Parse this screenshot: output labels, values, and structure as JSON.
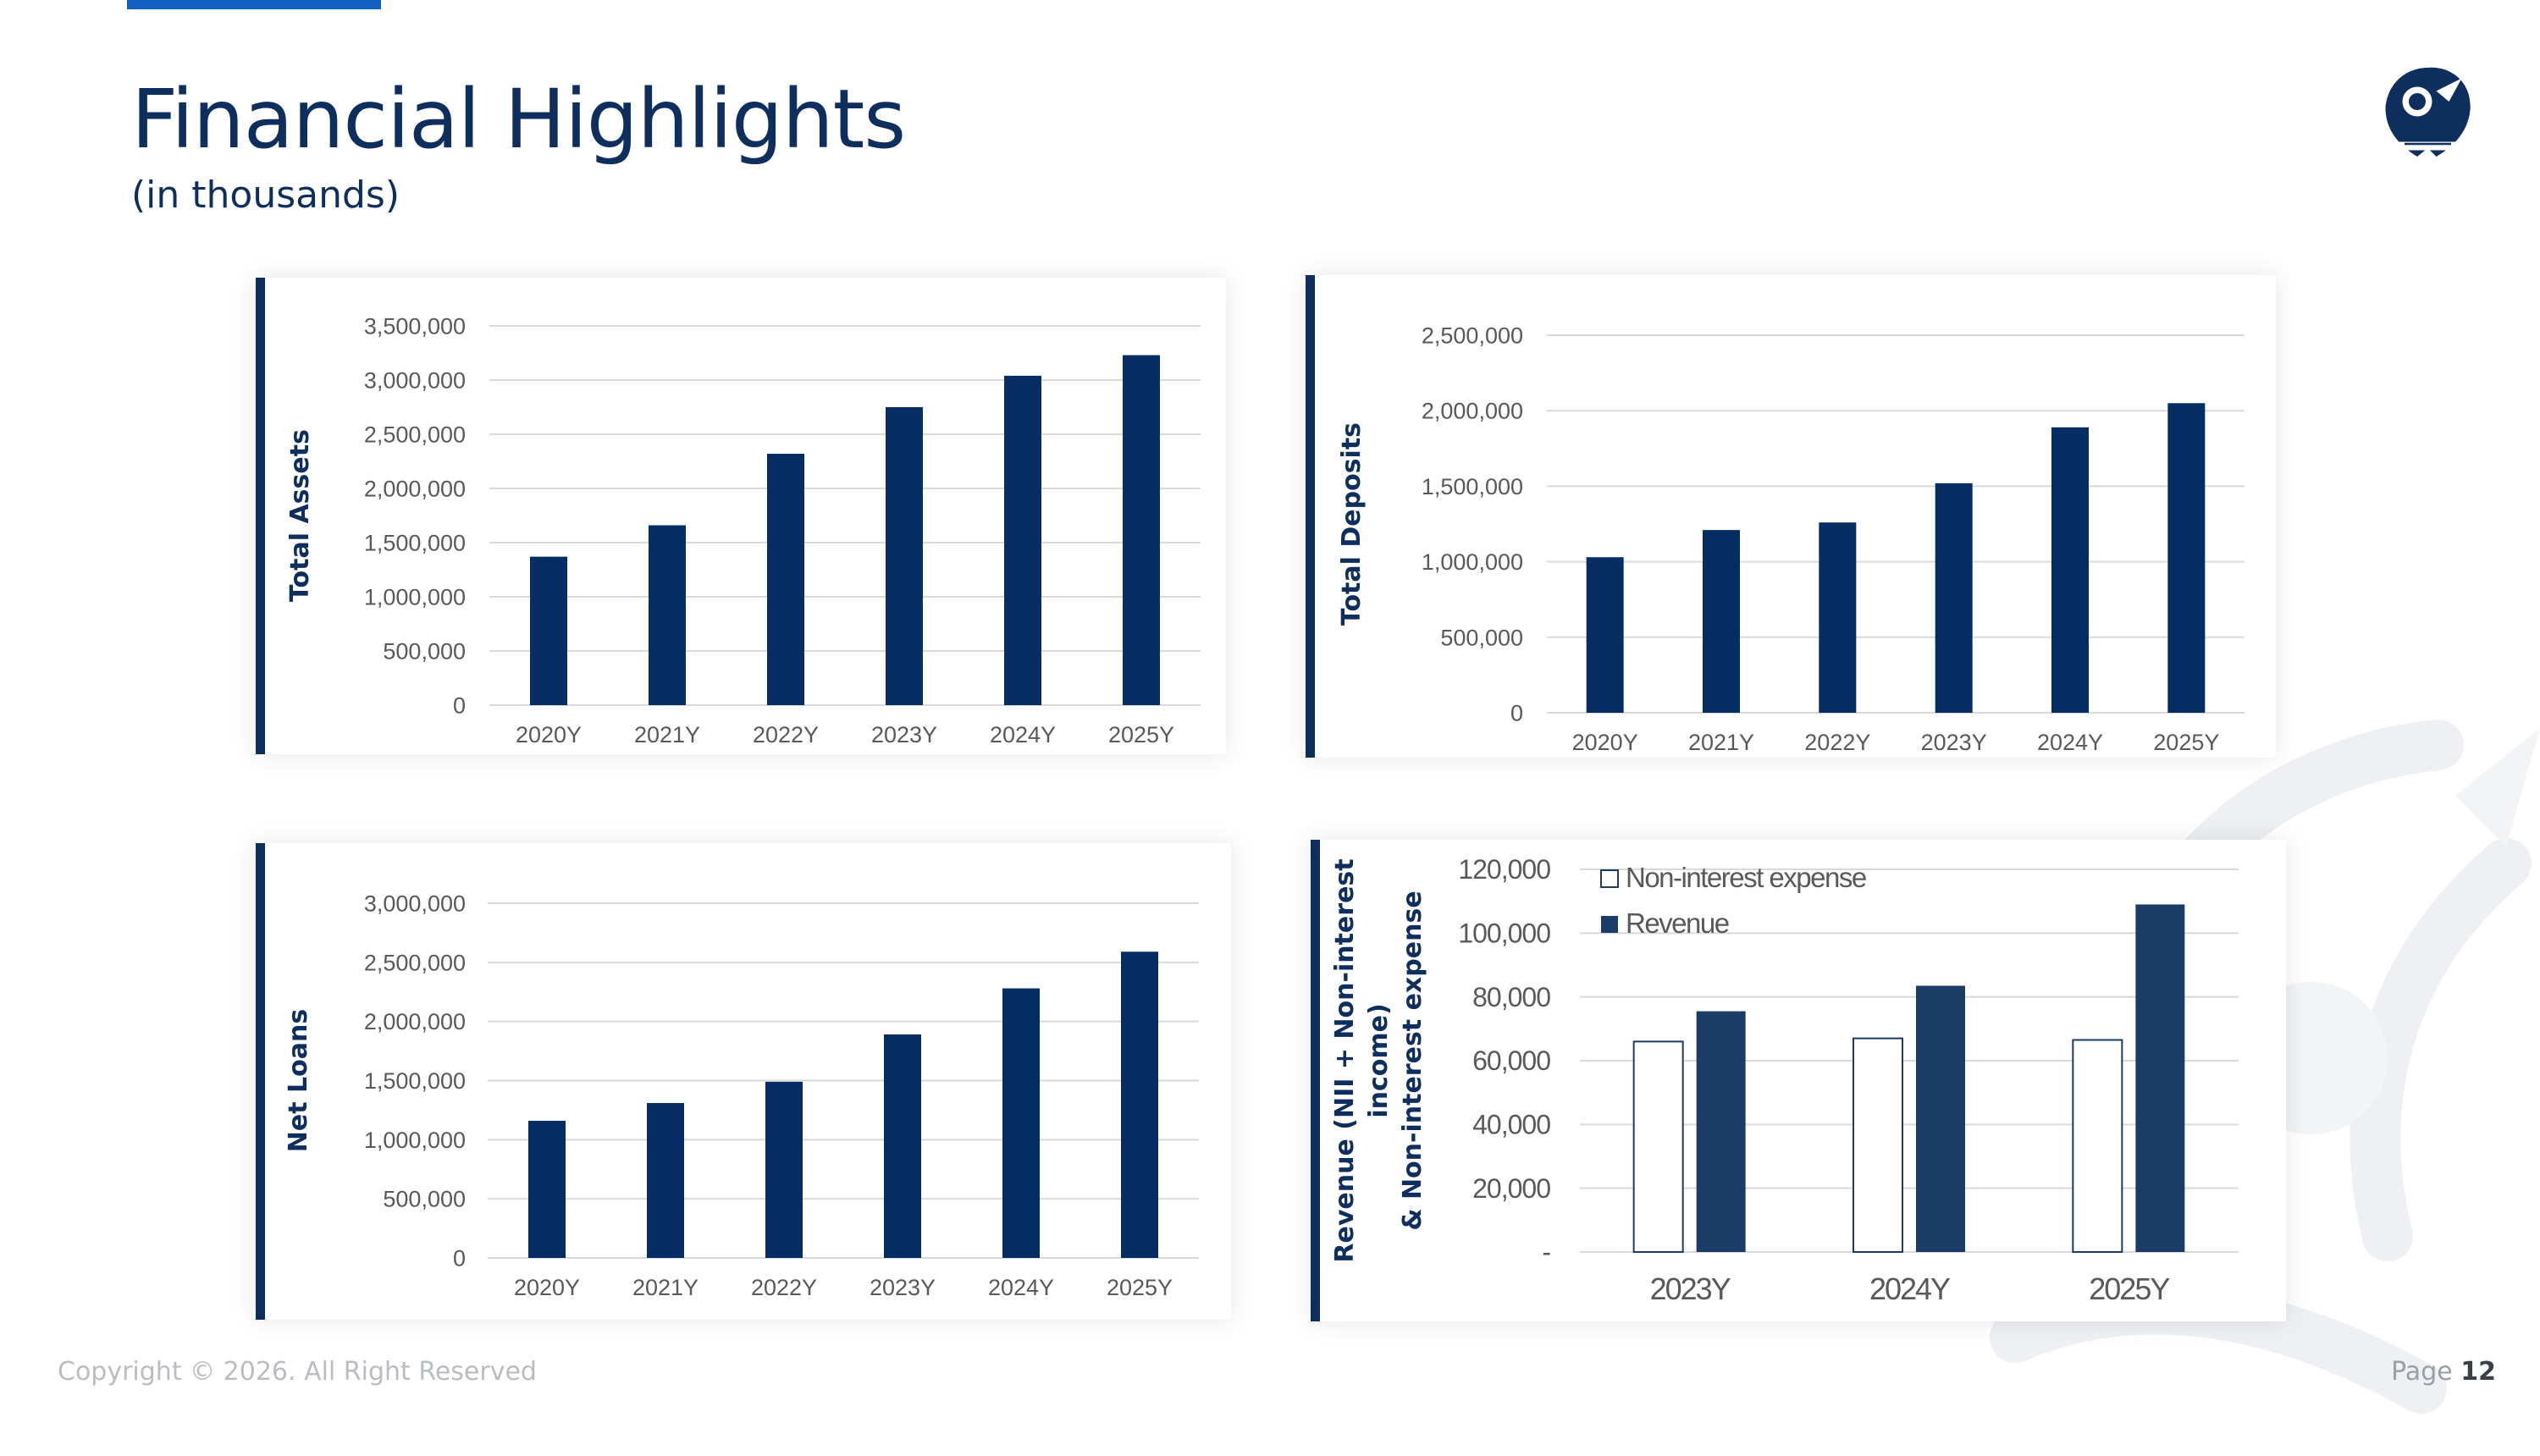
{
  "page": {
    "title": "Financial Highlights",
    "subtitle": "(in thousands)",
    "footer_copyright": "Copyright © 2026. All Right Reserved",
    "footer_page_label": "Page",
    "footer_page_number": "12"
  },
  "colors": {
    "bar": "#052d64",
    "bar_revenue": "#1b3c67",
    "bar_expense_fill": "#ffffff",
    "bar_expense_stroke": "#1b3c67",
    "grid": "#d9d9d9",
    "tick_text": "#595959",
    "ylabel": "#0e2f5e",
    "accent": "#1460c0"
  },
  "icons": {
    "logo": "company-crest-icon",
    "watermark": "crest-watermark-icon"
  },
  "chart_data": [
    {
      "id": "total_assets",
      "type": "bar",
      "ylabel": "Total Assets",
      "categories": [
        "2020Y",
        "2021Y",
        "2022Y",
        "2023Y",
        "2024Y",
        "2025Y"
      ],
      "values": [
        1370000,
        1660000,
        2320000,
        2750000,
        3040000,
        3230000
      ],
      "ylim": [
        0,
        3500000
      ],
      "yticks": [
        "0",
        "500,000",
        "1,000,000",
        "1,500,000",
        "2,000,000",
        "2,500,000",
        "3,000,000",
        "3,500,000"
      ],
      "grid": true,
      "legend": "none"
    },
    {
      "id": "total_deposits",
      "type": "bar",
      "ylabel": "Total Deposits",
      "categories": [
        "2020Y",
        "2021Y",
        "2022Y",
        "2023Y",
        "2024Y",
        "2025Y"
      ],
      "values": [
        1030000,
        1210000,
        1260000,
        1520000,
        1890000,
        2050000
      ],
      "ylim": [
        0,
        2500000
      ],
      "yticks": [
        "0",
        "500,000",
        "1,000,000",
        "1,500,000",
        "2,000,000",
        "2,500,000"
      ],
      "grid": true,
      "legend": "none"
    },
    {
      "id": "net_loans",
      "type": "bar",
      "ylabel": "Net Loans",
      "categories": [
        "2020Y",
        "2021Y",
        "2022Y",
        "2023Y",
        "2024Y",
        "2025Y"
      ],
      "values": [
        1160000,
        1310000,
        1490000,
        1890000,
        2280000,
        2590000
      ],
      "ylim": [
        0,
        3000000
      ],
      "yticks": [
        "0",
        "500,000",
        "1,000,000",
        "1,500,000",
        "2,000,000",
        "2,500,000",
        "3,000,000"
      ],
      "grid": true,
      "legend": "none"
    },
    {
      "id": "revenue_expense",
      "type": "bar",
      "ylabel_lines": [
        "Revenue (NII + Non-interest",
        "income)",
        "& Non-interest expense"
      ],
      "categories": [
        "2023Y",
        "2024Y",
        "2025Y"
      ],
      "series": [
        {
          "name": "Non-interest expense",
          "values": [
            66000,
            67000,
            66500
          ]
        },
        {
          "name": "Revenue",
          "values": [
            75500,
            83500,
            109000
          ]
        }
      ],
      "ylim": [
        0,
        120000
      ],
      "yticks": [
        "-",
        "20,000",
        "40,000",
        "60,000",
        "80,000",
        "100,000",
        "120,000"
      ],
      "grid": true,
      "legend": "top-left"
    }
  ]
}
